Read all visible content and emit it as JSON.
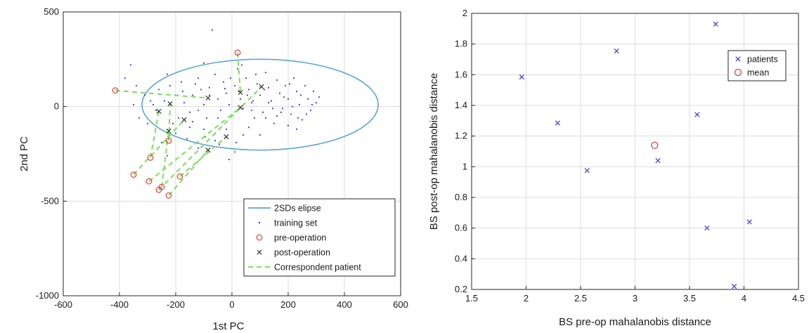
{
  "chart_data": [
    {
      "type": "scatter",
      "xlabel": "1st PC",
      "ylabel": "2nd PC",
      "xlim": [
        -600,
        600
      ],
      "ylim": [
        -1000,
        500
      ],
      "x_ticks": [
        -600,
        -400,
        -200,
        0,
        200,
        400,
        600
      ],
      "y_ticks": [
        -1000,
        -500,
        0,
        500
      ],
      "grid": true,
      "legend_placement": "bottom-right",
      "legend": [
        "2SDs elipse",
        "training set",
        "pre-operation",
        "post-operation",
        "Correspondent patient"
      ],
      "colors": {
        "ellipse": "#5aa6d6",
        "training": "#3a3ae0",
        "pre": "#e0413a",
        "post": "#333333",
        "correspondent": "#7be05a"
      },
      "ellipse": {
        "center": [
          100,
          10
        ],
        "semi_axis_x": 420,
        "semi_axis_y": 240
      },
      "training_set": [
        [
          -360,
          220
        ],
        [
          -380,
          150
        ],
        [
          -340,
          110
        ],
        [
          -310,
          60
        ],
        [
          -290,
          30
        ],
        [
          -260,
          90
        ],
        [
          -230,
          170
        ],
        [
          -220,
          110
        ],
        [
          -200,
          60
        ],
        [
          -180,
          130
        ],
        [
          -170,
          20
        ],
        [
          -150,
          -30
        ],
        [
          -140,
          60
        ],
        [
          -120,
          150
        ],
        [
          -110,
          90
        ],
        [
          -100,
          10
        ],
        [
          -90,
          -60
        ],
        [
          -80,
          100
        ],
        [
          -60,
          170
        ],
        [
          -50,
          40
        ],
        [
          -40,
          -20
        ],
        [
          -30,
          130
        ],
        [
          -20,
          70
        ],
        [
          -10,
          10
        ],
        [
          0,
          -50
        ],
        [
          10,
          110
        ],
        [
          20,
          200
        ],
        [
          30,
          40
        ],
        [
          40,
          -10
        ],
        [
          50,
          150
        ],
        [
          60,
          90
        ],
        [
          70,
          20
        ],
        [
          80,
          -60
        ],
        [
          90,
          120
        ],
        [
          100,
          60
        ],
        [
          110,
          -30
        ],
        [
          120,
          180
        ],
        [
          130,
          100
        ],
        [
          140,
          30
        ],
        [
          150,
          -90
        ],
        [
          160,
          140
        ],
        [
          170,
          70
        ],
        [
          180,
          -10
        ],
        [
          190,
          110
        ],
        [
          200,
          40
        ],
        [
          210,
          -40
        ],
        [
          220,
          150
        ],
        [
          230,
          80
        ],
        [
          240,
          10
        ],
        [
          250,
          -70
        ],
        [
          260,
          110
        ],
        [
          270,
          40
        ],
        [
          280,
          -20
        ],
        [
          290,
          80
        ],
        [
          300,
          20
        ],
        [
          -70,
          405
        ],
        [
          -100,
          230
        ],
        [
          -150,
          -110
        ],
        [
          -200,
          -140
        ],
        [
          -250,
          -190
        ],
        [
          -120,
          -220
        ],
        [
          -60,
          -180
        ],
        [
          10,
          -240
        ],
        [
          -10,
          -280
        ],
        [
          40,
          -150
        ],
        [
          -330,
          -60
        ],
        [
          -350,
          10
        ],
        [
          -270,
          -20
        ],
        [
          -240,
          30
        ],
        [
          -190,
          -60
        ],
        [
          -160,
          -170
        ],
        [
          -230,
          -260
        ],
        [
          -140,
          -80
        ],
        [
          100,
          -150
        ],
        [
          60,
          -110
        ],
        [
          160,
          -50
        ],
        [
          230,
          -120
        ],
        [
          200,
          -100
        ],
        [
          120,
          -60
        ],
        [
          70,
          -20
        ],
        [
          -20,
          -120
        ],
        [
          -50,
          -60
        ],
        [
          -80,
          60
        ],
        [
          -120,
          -20
        ],
        [
          -100,
          -120
        ],
        [
          25,
          80
        ],
        [
          55,
          60
        ],
        [
          85,
          170
        ],
        [
          130,
          20
        ],
        [
          175,
          -30
        ],
        [
          215,
          0
        ],
        [
          245,
          60
        ],
        [
          -25,
          95
        ],
        [
          -5,
          150
        ],
        [
          35,
          220
        ],
        [
          75,
          30
        ],
        [
          115,
          90
        ],
        [
          145,
          -10
        ],
        [
          185,
          50
        ],
        [
          205,
          120
        ],
        [
          235,
          -60
        ],
        [
          265,
          -40
        ],
        [
          285,
          10
        ],
        [
          310,
          50
        ],
        [
          -300,
          -90
        ],
        [
          -280,
          10
        ],
        [
          -210,
          -90
        ],
        [
          -175,
          80
        ],
        [
          -130,
          120
        ],
        [
          -95,
          -160
        ],
        [
          -45,
          -200
        ],
        [
          15,
          -190
        ]
      ],
      "pre_operation": [
        [
          20,
          285
        ],
        [
          -415,
          85
        ],
        [
          -290,
          -270
        ],
        [
          -225,
          -180
        ],
        [
          -350,
          -360
        ],
        [
          -295,
          -395
        ],
        [
          -260,
          -440
        ],
        [
          -250,
          -425
        ],
        [
          -225,
          -470
        ],
        [
          -185,
          -370
        ]
      ],
      "post_operation": [
        [
          30,
          75
        ],
        [
          -85,
          45
        ],
        [
          -260,
          -25
        ],
        [
          -220,
          15
        ],
        [
          -170,
          -70
        ],
        [
          30,
          -5
        ],
        [
          105,
          105
        ],
        [
          -225,
          -130
        ],
        [
          -85,
          -230
        ],
        [
          -20,
          -160
        ]
      ],
      "pairs": [
        [
          0,
          0
        ],
        [
          1,
          1
        ],
        [
          2,
          2
        ],
        [
          3,
          3
        ],
        [
          4,
          4
        ],
        [
          5,
          5
        ],
        [
          6,
          6
        ],
        [
          7,
          7
        ],
        [
          8,
          8
        ],
        [
          9,
          9
        ]
      ]
    },
    {
      "type": "scatter",
      "xlabel": "BS pre-op mahalanobis distance",
      "ylabel": "BS post-op mahalanobis distance",
      "xlim": [
        1.5,
        4.5
      ],
      "ylim": [
        0.2,
        2
      ],
      "x_ticks": [
        1.5,
        2,
        2.5,
        3,
        3.5,
        4,
        4.5
      ],
      "y_ticks": [
        0.2,
        0.4,
        0.6,
        0.8,
        1,
        1.2,
        1.4,
        1.6,
        1.8,
        2
      ],
      "grid": true,
      "legend_placement": "top-right",
      "legend": [
        "patients",
        "mean"
      ],
      "colors": {
        "patients": "#3a3ae0",
        "mean": "#e0413a"
      },
      "series": [
        {
          "name": "patients",
          "x": [
            1.96,
            2.29,
            2.56,
            2.83,
            3.21,
            3.57,
            3.66,
            3.74,
            3.91,
            4.05
          ],
          "y": [
            1.585,
            1.285,
            0.975,
            1.755,
            1.04,
            1.34,
            0.6,
            1.93,
            0.22,
            0.64
          ]
        },
        {
          "name": "mean",
          "x": [
            3.18
          ],
          "y": [
            1.14
          ]
        }
      ]
    }
  ]
}
